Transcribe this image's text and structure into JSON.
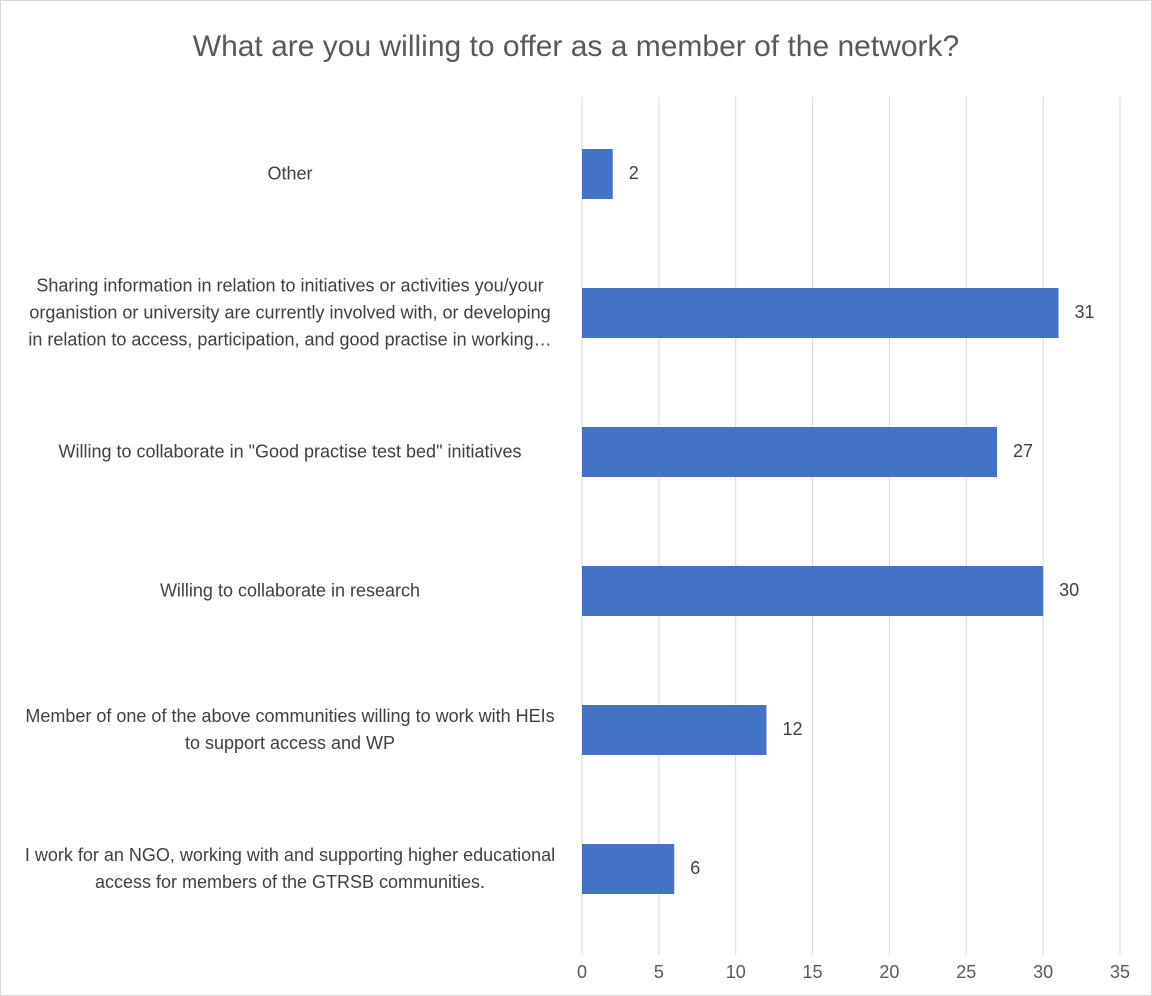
{
  "chart_data": {
    "type": "bar",
    "orientation": "horizontal",
    "title": "What are you willing to offer as a member of the network?",
    "categories": [
      "Other",
      "Sharing information in relation to initiatives or activities you/your organistion or university are currently involved with, or developing in relation to access, participation, and good practise in working…",
      "Willing to collaborate in \"Good practise test bed\" initiatives",
      "Willing to collaborate in research",
      "Member of one of the above communities willing to work with HEIs to support access and WP",
      "I work for an NGO, working with and supporting higher educational access for members of the GTRSB communities."
    ],
    "values": [
      2,
      31,
      27,
      30,
      12,
      6
    ],
    "color": "#4472c4",
    "xlim": [
      0,
      35
    ],
    "xticks": [
      0,
      5,
      10,
      15,
      20,
      25,
      30,
      35
    ],
    "grid": true
  }
}
